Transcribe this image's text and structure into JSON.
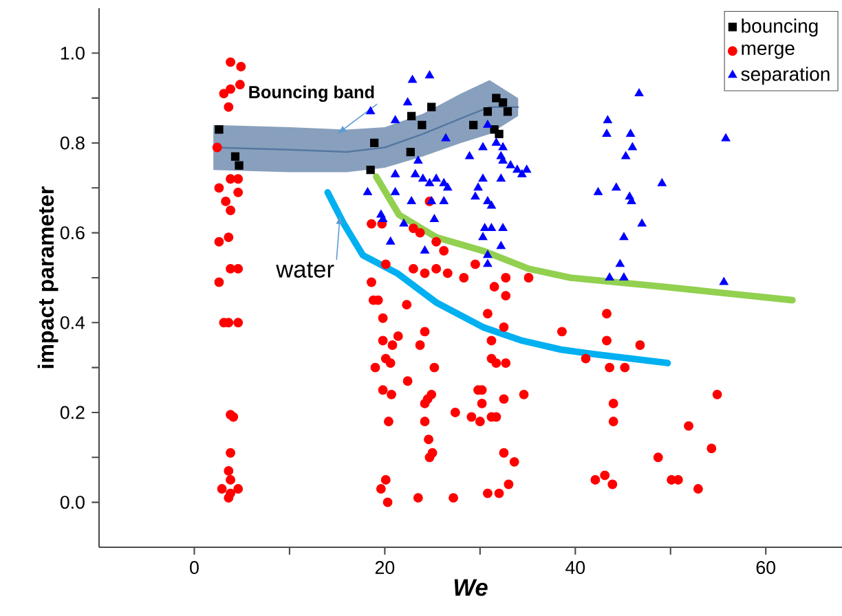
{
  "chart_data": {
    "type": "scatter",
    "xlabel": "*We*",
    "ylabel": "impact parameter",
    "xlim": [
      -10,
      68
    ],
    "ylim": [
      -0.1,
      1.1
    ],
    "xticks": [
      0,
      {
        "value": 10,
        "label": null
      },
      20,
      {
        "value": 30,
        "label": null
      },
      40,
      {
        "value": 50,
        "label": null
      },
      60
    ],
    "yticks": [
      {
        "value": 0.0,
        "label": "0.0"
      },
      {
        "value": 0.1,
        "label": null
      },
      {
        "value": 0.2,
        "label": "0.2"
      },
      {
        "value": 0.3,
        "label": null
      },
      {
        "value": 0.4,
        "label": "0.4"
      },
      {
        "value": 0.5,
        "label": null
      },
      {
        "value": 0.6,
        "label": "0.6"
      },
      {
        "value": 0.7,
        "label": null
      },
      {
        "value": 0.8,
        "label": "0.8"
      },
      {
        "value": 0.9,
        "label": null
      },
      {
        "value": 1.0,
        "label": "1.0"
      }
    ],
    "legend": "top right",
    "grid": false,
    "annotations": [
      {
        "text": "Bouncing band",
        "x": 15,
        "y": 0.82
      },
      {
        "text": "water",
        "x": 15.3,
        "y": 0.64
      }
    ],
    "series": [
      {
        "name": "bouncing",
        "marker": "square",
        "color": "#000000",
        "x": [
          2.6,
          4.3,
          4.7,
          18.9,
          18.5,
          22.8,
          24.9,
          23.9,
          22.7,
          29.3,
          31.7,
          32.4,
          30.8,
          32.9,
          31.5,
          32.0
        ],
        "values": [
          0.83,
          0.77,
          0.75,
          0.8,
          0.74,
          0.86,
          0.88,
          0.84,
          0.78,
          0.84,
          0.9,
          0.89,
          0.87,
          0.87,
          0.83,
          0.82
        ]
      },
      {
        "name": "merge",
        "marker": "circle",
        "color": "#ff0000",
        "x": [
          3.8,
          4.9,
          4.8,
          3.8,
          3.1,
          3.6,
          2.4,
          3.8,
          4.6,
          2.6,
          4.6,
          3.3,
          3.8,
          2.6,
          3.6,
          3.8,
          4.6,
          2.6,
          3.1,
          3.6,
          4.6,
          3.8,
          4.1,
          3.8,
          3.6,
          3.8,
          2.9,
          4.6,
          3.6,
          3.8,
          18.6,
          19.7,
          24.7,
          23.0,
          23.7,
          25.4,
          26.2,
          20.1,
          23.0,
          24.2,
          25.4,
          26.6,
          28.3,
          29.5,
          35.1,
          18.6,
          18.8,
          19.3,
          22.3,
          19.8,
          19.8,
          21.4,
          20.8,
          24.2,
          23.7,
          20.1,
          20.6,
          19.0,
          25.2,
          19.8,
          20.7,
          22.4,
          24.5,
          24.9,
          24.2,
          20.4,
          24.2,
          27.4,
          24.6,
          24.7,
          25.0,
          20.1,
          19.6,
          20.3,
          23.5,
          27.2,
          31.5,
          32.7,
          32.7,
          30.8,
          32.5,
          31.2,
          31.2,
          31.7,
          32.7,
          29.8,
          30.2,
          30.2,
          32.5,
          34.6,
          29.1,
          30.0,
          31.2,
          31.7,
          32.5,
          33.6,
          33.0,
          30.8,
          32.0,
          38.6,
          43.3,
          43.3,
          46.8,
          41.1,
          43.6,
          45.2,
          54.9,
          44.0,
          44.0,
          51.9,
          54.3,
          48.7,
          42.1,
          43.1,
          43.9,
          50.1,
          50.8,
          52.9
        ],
        "values": [
          0.98,
          0.97,
          0.93,
          0.92,
          0.91,
          0.88,
          0.79,
          0.72,
          0.72,
          0.7,
          0.69,
          0.67,
          0.65,
          0.58,
          0.59,
          0.52,
          0.52,
          0.49,
          0.4,
          0.4,
          0.4,
          0.195,
          0.19,
          0.11,
          0.07,
          0.05,
          0.03,
          0.03,
          0.01,
          0.02,
          0.62,
          0.62,
          0.67,
          0.61,
          0.6,
          0.58,
          0.56,
          0.53,
          0.52,
          0.51,
          0.52,
          0.51,
          0.5,
          0.53,
          0.5,
          0.49,
          0.45,
          0.45,
          0.44,
          0.41,
          0.36,
          0.37,
          0.35,
          0.38,
          0.35,
          0.32,
          0.31,
          0.3,
          0.3,
          0.25,
          0.24,
          0.27,
          0.23,
          0.24,
          0.22,
          0.18,
          0.18,
          0.2,
          0.14,
          0.1,
          0.11,
          0.05,
          0.03,
          0.0,
          0.01,
          0.01,
          0.48,
          0.5,
          0.46,
          0.42,
          0.39,
          0.36,
          0.32,
          0.31,
          0.31,
          0.25,
          0.25,
          0.22,
          0.23,
          0.24,
          0.19,
          0.18,
          0.19,
          0.19,
          0.11,
          0.09,
          0.04,
          0.02,
          0.02,
          0.38,
          0.42,
          0.36,
          0.35,
          0.32,
          0.3,
          0.3,
          0.24,
          0.22,
          0.18,
          0.17,
          0.12,
          0.1,
          0.05,
          0.06,
          0.04,
          0.05,
          0.05,
          0.03
        ]
      },
      {
        "name": "separation",
        "marker": "triangle",
        "color": "#0000ff",
        "x": [
          18.5,
          18.2,
          19.6,
          19.8,
          20.6,
          21.1,
          22.9,
          24.7,
          22.4,
          21.1,
          26.4,
          30.8,
          28.9,
          30.3,
          31.7,
          32.4,
          23.5,
          32.2,
          23.2,
          24.0,
          24.7,
          25.4,
          26.2,
          26.6,
          21.1,
          22.8,
          24.9,
          26.2,
          30.3,
          29.8,
          29.5,
          30.8,
          31.2,
          32.4,
          33.2,
          33.9,
          34.9,
          34.4,
          32.2,
          22.0,
          25.2,
          30.5,
          31.2,
          32.4,
          24.2,
          30.3,
          30.8,
          32.2,
          30.8,
          46.7,
          43.4,
          43.3,
          45.8,
          46.0,
          45.3,
          55.8,
          42.4,
          44.3,
          45.7,
          45.9,
          49.1,
          47.0,
          45.1,
          44.7,
          43.6,
          45.1,
          55.6
        ],
        "values": [
          0.87,
          0.69,
          0.64,
          0.63,
          0.58,
          0.73,
          0.94,
          0.95,
          0.89,
          0.85,
          0.81,
          0.84,
          0.77,
          0.79,
          0.8,
          0.79,
          0.76,
          0.77,
          0.73,
          0.72,
          0.71,
          0.72,
          0.71,
          0.7,
          0.69,
          0.67,
          0.67,
          0.67,
          0.72,
          0.7,
          0.68,
          0.67,
          0.66,
          0.76,
          0.75,
          0.74,
          0.74,
          0.73,
          0.72,
          0.62,
          0.63,
          0.61,
          0.61,
          0.61,
          0.56,
          0.59,
          0.55,
          0.57,
          0.53,
          0.91,
          0.85,
          0.82,
          0.82,
          0.79,
          0.77,
          0.81,
          0.69,
          0.7,
          0.68,
          0.67,
          0.71,
          0.62,
          0.59,
          0.53,
          0.5,
          0.5,
          0.49
        ]
      },
      {
        "type": "line",
        "marker": "none",
        "line_style": "solid",
        "color": "#5577a0",
        "x": [
          2,
          10,
          16,
          20,
          24,
          28,
          31,
          34
        ],
        "values": [
          0.79,
          0.785,
          0.78,
          0.79,
          0.82,
          0.855,
          0.88,
          0.88
        ],
        "lower": [
          0.74,
          0.735,
          0.735,
          0.745,
          0.77,
          0.8,
          0.82,
          0.86
        ],
        "upper": [
          0.84,
          0.835,
          0.83,
          0.835,
          0.865,
          0.91,
          0.94,
          0.9
        ]
      },
      {
        "type": "line",
        "marker": "none",
        "line_style": "solid",
        "color": "#92d050",
        "x": [
          19.1,
          21.5,
          25.4,
          30.3,
          35.1,
          39.5,
          49.2,
          62.8
        ],
        "values": [
          0.725,
          0.64,
          0.59,
          0.56,
          0.52,
          0.5,
          0.48,
          0.45
        ]
      },
      {
        "type": "line",
        "marker": "none",
        "line_style": "solid",
        "color": "#00b0f0",
        "x": [
          14.0,
          15.7,
          17.7,
          21.3,
          25.4,
          30.3,
          34.4,
          38.5,
          41.9,
          49.7
        ],
        "values": [
          0.69,
          0.62,
          0.55,
          0.51,
          0.445,
          0.39,
          0.36,
          0.34,
          0.33,
          0.31
        ]
      }
    ]
  }
}
